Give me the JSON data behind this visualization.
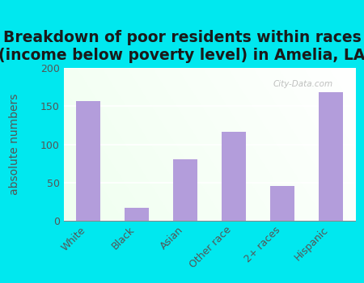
{
  "title": "Breakdown of poor residents within races\n(income below poverty level) in Amelia, LA",
  "categories": [
    "White",
    "Black",
    "Asian",
    "Other race",
    "2+ races",
    "Hispanic"
  ],
  "values": [
    157,
    17,
    80,
    116,
    45,
    168
  ],
  "bar_color": "#b39ddb",
  "ylabel": "absolute numbers",
  "ylim": [
    0,
    200
  ],
  "yticks": [
    0,
    50,
    100,
    150,
    200
  ],
  "background_outer": "#00e8ef",
  "grid_color": "#ffffff",
  "title_fontsize": 13.5,
  "ylabel_fontsize": 10,
  "tick_fontsize": 9,
  "label_color": "#555555",
  "watermark": "City-Data.com"
}
